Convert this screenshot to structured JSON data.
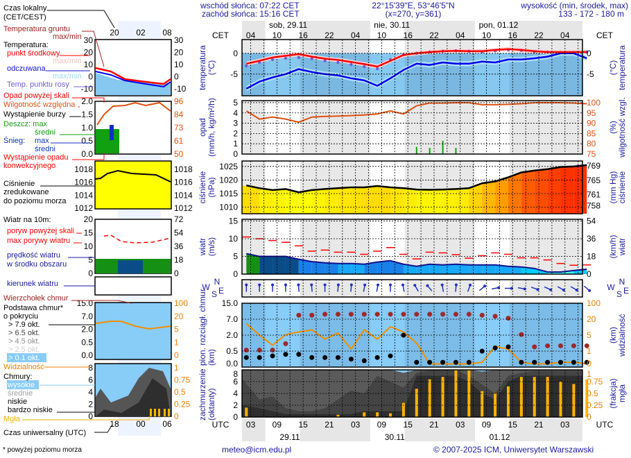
{
  "header": {
    "sunrise": "wschód słońca: 07:22 CET",
    "sunset": "zachód słońca: 15:16 CET",
    "coords": "22°15'39\"E, 53°46'5\"N",
    "grid": "(x=270,  y=361)",
    "elevation_label": "wysokość (min, środek, max)",
    "elevation": "133 - 172 - 180 m"
  },
  "time_axis": {
    "top_label": "CET",
    "bottom_label": "UTC",
    "days_top": [
      "sob, 29.11",
      "nie, 30.11",
      "pon, 01.12"
    ],
    "cet_ticks": [
      "04",
      "10",
      "16",
      "22",
      "04",
      "10",
      "16",
      "22",
      "04",
      "10",
      "16",
      "22",
      "04"
    ],
    "utc_ticks": [
      "03",
      "09",
      "15",
      "21",
      "03",
      "09",
      "15",
      "21",
      "03",
      "09",
      "15",
      "21",
      "03"
    ],
    "days_bottom": [
      "29.11",
      "30.11",
      "01.12"
    ]
  },
  "axes": {
    "temp": {
      "left_title": [
        "temperatura",
        "(°C)"
      ],
      "right_title": [
        "(°C)",
        "temperatura"
      ],
      "left_ticks": [
        "0",
        "-5"
      ],
      "right_ticks": [
        "0",
        "-5"
      ]
    },
    "precip": {
      "left_title": [
        "opad",
        "(mm/h, kg/m²/h)"
      ],
      "right_title": [
        "(%)",
        "wilgotność wzgl."
      ],
      "left_ticks": [
        "0",
        "1",
        "2",
        "3",
        "4",
        "5"
      ],
      "right_ticks": [
        "75",
        "80",
        "85",
        "90",
        "95",
        "100"
      ]
    },
    "pressure": {
      "left_title": [
        "ciśnienie",
        "(hPa)"
      ],
      "right_title": [
        "(mm Hg)",
        "ciśnienie"
      ],
      "left_ticks": [
        "1010",
        "1015",
        "1020",
        "1025"
      ],
      "right_ticks": [
        "758",
        "761",
        "765",
        "769"
      ]
    },
    "wind": {
      "left_title": [
        "wiatr",
        "(m/s)"
      ],
      "right_title": [
        "(km/h)",
        "wiatr"
      ],
      "left_ticks": [
        "0",
        "5",
        "10",
        "15"
      ],
      "right_ticks": [
        "0",
        "18",
        "36",
        "54"
      ]
    },
    "direction": {
      "compass": [
        "N",
        "W",
        "E",
        "S"
      ]
    },
    "clouds": {
      "left_title": [
        "pion. rozciągł. chmur",
        "(km)"
      ],
      "right_title": [
        "(km)",
        "widzialność"
      ],
      "left_ticks": [
        "0.0",
        "0.5",
        "2.0",
        "7.0",
        "15.0"
      ],
      "right_ticks": [
        "0",
        "1",
        "5",
        "20",
        "100"
      ]
    },
    "cover": {
      "left_title": [
        "zachmurzenie",
        "(oktanty)"
      ],
      "right_title": [
        "(frakcja)",
        "mgła"
      ],
      "left_ticks": [
        "0",
        "2",
        "4",
        "6",
        "8"
      ],
      "right_ticks": [
        "0",
        "0.25",
        "0.5",
        "0.75",
        "1"
      ]
    }
  },
  "legend": {
    "local_time": [
      "Czas lokalny",
      "(CET/CEST)"
    ],
    "local_ticks": [
      "20",
      "02",
      "08"
    ],
    "ground_temp": [
      "Temperatura gruntu",
      "max/min"
    ],
    "temperature": "Temperatura:",
    "mid_point": "punkt środkowy",
    "temp_maxmin": "max/min",
    "feels_like": "odczuwana",
    "feels_maxmin": "max/min",
    "dew_point": "Temp. punktu rosy",
    "temp_ticks_left": [
      "30",
      "20",
      "10",
      "0",
      "-10"
    ],
    "temp_ticks_right": [
      "30",
      "20",
      "10",
      "0",
      "-10"
    ],
    "precip_over_scale": "Opad powyżej skali",
    "humidity": "Wilgotność względna",
    "storm": "Wystąpienie burzy",
    "rain": [
      "Deszcz: max",
      "średni"
    ],
    "snow": [
      "Śnieg:",
      "max",
      "średni"
    ],
    "convective": [
      "Wystąpienie opadu",
      "konwekcyjnego"
    ],
    "precip_ticks_left": [
      "2.0",
      "1.5",
      "1.0",
      "0.5",
      "0.0"
    ],
    "precip_ticks_right": [
      "96",
      "84",
      "73",
      "61",
      "50"
    ],
    "pressure": [
      "Ciśnienie",
      "zredukowane",
      "do poziomu morza"
    ],
    "pressure_ticks_left": [
      "1018",
      "1016",
      "1014",
      "1012"
    ],
    "pressure_ticks_right": [
      "1018",
      "1016",
      "1014",
      "1012"
    ],
    "wind_title": "Wiatr na 10m:",
    "gust_over_scale": "poryw powyżej skali",
    "max_gusts": "max porywy wiatru",
    "wind_speed": [
      "prędkość wiatru",
      "w środku obszaru"
    ],
    "wind_ticks_left": [
      "20",
      "15",
      "10",
      "5",
      "0"
    ],
    "wind_ticks_right": [
      "72",
      "54",
      "36",
      "18",
      "0"
    ],
    "wind_dir": "kierunek wiatru",
    "cloud_top": "Wierzchołek chmur",
    "cloud_base": [
      "Podstawa chmur*",
      "o pokryciu"
    ],
    "okt": [
      "> 7.9 okt.",
      "> 6.5 okt.",
      "> 4.5 okt.",
      "> 2.5 okt.",
      "> 0.1 okt."
    ],
    "visibility": "Widzialność",
    "cloud_ticks_left": [
      "15.0",
      "7.0",
      "2.0",
      "0.5",
      "0.0"
    ],
    "cloud_ticks_right": [
      "100",
      "20",
      "5",
      "1",
      "0"
    ],
    "clouds": "Chmury:",
    "cloud_levels": [
      "wysokie",
      "średnie",
      "niskie",
      "bardzo niskie"
    ],
    "fog": "Mgła",
    "cover_ticks_left": [
      "8",
      "6",
      "4",
      "2",
      "0"
    ],
    "cover_ticks_right": [
      "1",
      "0.75",
      "0.5",
      "0.25",
      "0"
    ],
    "utc_ticks": [
      "18",
      "00",
      "06"
    ],
    "utc": "Czas uniwersalny (UTC)",
    "footnote": "* powyżej poziomu morza"
  },
  "footer": {
    "email": "meteo@icm.edu.pl",
    "copyright": "© 2007-2025 ICM, Uniwersytet Warszawski"
  },
  "colors": {
    "temperature": "#ff0000",
    "feels_like": "#0000ee",
    "dew_point": "#7060d0",
    "humidity": "#e05010",
    "rain": "#10a010",
    "pressure_low": "#ffff00",
    "pressure_high": "#ff3000",
    "gust": "#ff0000",
    "wind_line": "#101090",
    "cloud_top": "#a02828",
    "visibility": "#f09000",
    "fog": "#ffb400",
    "title_text": "#1a1aa0"
  },
  "chart_data": {
    "type": "line",
    "x": [
      "29.11 01:00",
      "29.11 04:00",
      "29.11 07:00",
      "29.11 10:00",
      "29.11 13:00",
      "29.11 16:00",
      "29.11 19:00",
      "29.11 22:00",
      "30.11 01:00",
      "30.11 04:00",
      "30.11 07:00",
      "30.11 10:00",
      "30.11 13:00",
      "30.11 16:00",
      "30.11 19:00",
      "30.11 22:00",
      "01.12 01:00",
      "01.12 04:00",
      "01.12 07:00",
      "01.12 10:00",
      "01.12 13:00",
      "01.12 16:00",
      "01.12 19:00",
      "01.12 22:00",
      "02.12 01:00",
      "02.12 04:00",
      "02.12 07:00"
    ],
    "x_unit": "UTC",
    "panels": {
      "temperature": {
        "ylim": [
          -10,
          3
        ],
        "series": [
          {
            "name": "punkt środkowy",
            "values": [
              -2.5,
              -1.8,
              -1,
              -0.6,
              -0.2,
              -0.8,
              -1.3,
              -1.6,
              -2.1,
              -2.6,
              -3.2,
              -1.8,
              -0.4,
              0,
              0.3,
              0.5,
              0.6,
              0.5,
              0.5,
              0.8,
              1,
              0.8,
              0.5,
              0.3,
              0.3,
              0.3,
              0.3
            ]
          },
          {
            "name": "odczuwana",
            "values": [
              -8.5,
              -6.8,
              -5.8,
              -5,
              -3.8,
              -4.5,
              -5,
              -5.3,
              -6,
              -6.5,
              -7.8,
              -6,
              -4,
              -2.5,
              -2.8,
              -2.2,
              -2.5,
              -2.5,
              -2,
              -2.2,
              -1.5,
              -1.5,
              -1.2,
              -0.8,
              0,
              0,
              -1.2
            ]
          },
          {
            "name": "Temp. punktu rosy",
            "values": [
              -3,
              -2.2,
              -1.5,
              -1.2,
              -1,
              -1.3,
              -1.8,
              -2.2,
              -2.7,
              -3.2,
              -3.7,
              -1.5,
              -0.3,
              0,
              0.3,
              0.5,
              0.6,
              0.5,
              0.4,
              0.6,
              0.8,
              0.7,
              0.4,
              0.3,
              0.2,
              0.2,
              0.3
            ]
          }
        ]
      },
      "precipitation": {
        "ylim": [
          0,
          5
        ],
        "y2lim": [
          75,
          100
        ],
        "series": [
          {
            "name": "Deszcz",
            "type": "bar",
            "values": [
              0,
              0,
              0,
              0,
              0,
              0,
              0,
              0,
              0,
              0,
              0,
              0,
              0,
              0.7,
              0.6,
              1.3,
              0.6,
              0,
              0,
              0,
              0,
              0,
              0,
              0,
              0,
              0,
              0
            ]
          },
          {
            "name": "Wilgotność względna",
            "axis": "right",
            "values": [
              96,
              92,
              93,
              92,
              90.5,
              93,
              93.3,
              93.5,
              93.7,
              94,
              94.5,
              96,
              94.5,
              98.5,
              99.8,
              99.8,
              100,
              100,
              99,
              99,
              99.2,
              99.5,
              100,
              100,
              100,
              99.8,
              99.5
            ]
          }
        ]
      },
      "pressure": {
        "ylim": [
          1008,
          1027
        ],
        "series": [
          {
            "name": "Ciśnienie",
            "type": "area",
            "values": [
              1018,
              1017,
              1016.3,
              1016.7,
              1015.5,
              1016.3,
              1016.7,
              1017,
              1017.3,
              1017.3,
              1017.8,
              1017.3,
              1017,
              1016.5,
              1016.4,
              1016.5,
              1016.7,
              1017,
              1018.8,
              1019.5,
              1021,
              1022.8,
              1023.5,
              1024,
              1024.8,
              1025,
              1025.5
            ]
          }
        ]
      },
      "wind": {
        "ylim": [
          0,
          15
        ],
        "series": [
          {
            "name": "prędkość wiatru",
            "type": "area",
            "values": [
              5.8,
              5,
              5,
              5,
              4.2,
              3.5,
              3.2,
              3,
              3,
              2.8,
              3.4,
              3.8,
              2.8,
              2.2,
              2.8,
              2.6,
              2.8,
              2.6,
              2.6,
              2.6,
              2.2,
              2,
              1.6,
              0.6,
              0.6,
              1,
              1.4
            ]
          },
          {
            "name": "max porywy wiatru",
            "type": "step",
            "values": [
              10.5,
              10,
              9.5,
              9,
              8,
              6.5,
              6.8,
              6.2,
              6.2,
              5.6,
              6.5,
              7.5,
              5.6,
              4.3,
              6.2,
              6,
              5.5,
              4.5,
              5.2,
              6,
              5.6,
              4.6,
              4.6,
              4,
              3,
              2.5,
              2.6
            ]
          }
        ]
      },
      "wind_direction_deg": [
        180,
        180,
        180,
        180,
        175,
        175,
        180,
        185,
        185,
        190,
        190,
        180,
        170,
        150,
        140,
        170,
        185,
        200,
        230,
        260,
        270,
        280,
        290,
        295,
        300,
        300,
        310
      ],
      "clouds": {
        "y_ticks_km": [
          0,
          0.5,
          2,
          7,
          15
        ],
        "y2_ticks_km": [
          0,
          1,
          5,
          20,
          100
        ],
        "series": [
          {
            "name": "Wierzchołek chmur",
            "type": "scatter",
            "values": [
              0.6,
              0.6,
              0.6,
              1.2,
              9,
              9,
              9.5,
              9.5,
              9.5,
              9.5,
              9.5,
              9.5,
              9.5,
              9.5,
              9.5,
              9.5,
              9.5,
              9.5,
              9,
              8.5,
              7.5,
              2.2,
              0.9,
              1,
              1,
              1,
              1
            ]
          },
          {
            "name": "> 7.9 okt.",
            "type": "scatter",
            "values": [
              0.3,
              0.3,
              0.35,
              0.4,
              0.4,
              0.3,
              0.3,
              0.3,
              0.25,
              0.2,
              0.3,
              0.35,
              2,
              0.15,
              0.15,
              0.15,
              0.15,
              0.15,
              0.5,
              0.8,
              0.9,
              0.15,
              0.15,
              0.15,
              0.15,
              0.15,
              0.15
            ]
          },
          {
            "name": "Widzialność",
            "axis": "right",
            "values": [
              16,
              5,
              2.5,
              5.5,
              8,
              10,
              4,
              7,
              1.5,
              10,
              4,
              13,
              8,
              3,
              0.2,
              0.2,
              0.2,
              0.2,
              0.3,
              2.2,
              1.5,
              0.3,
              0.2,
              0.2,
              0.3,
              0.3,
              0.2
            ]
          }
        ]
      },
      "cloud_cover": {
        "ylim": [
          0,
          8
        ],
        "y2lim": [
          0,
          1
        ],
        "series": [
          {
            "name": "średnie",
            "type": "area",
            "values": [
              8,
              8,
              8,
              8,
              8,
              8,
              8,
              8,
              8,
              8,
              8,
              8,
              7.5,
              8,
              8,
              8,
              8,
              8,
              7.7,
              8,
              8,
              8,
              8,
              8,
              8,
              8,
              8
            ]
          },
          {
            "name": "niskie",
            "type": "area",
            "values": [
              6.5,
              3,
              3.5,
              1.5,
              1,
              1,
              1.5,
              3,
              4.5,
              4,
              7,
              6,
              5,
              7.5,
              8,
              8,
              8,
              7,
              5.5,
              4,
              7,
              7.5,
              7.8,
              7.8,
              7.8,
              7.8,
              7.8
            ]
          },
          {
            "name": "bardzo niskie",
            "type": "area",
            "values": [
              2,
              1.5,
              1,
              0.5,
              0.5,
              0.5,
              0.5,
              0.5,
              0.5,
              1,
              1,
              1,
              1,
              7,
              7,
              7,
              7,
              6,
              4,
              3,
              6,
              7,
              7,
              7,
              7,
              7,
              7
            ]
          },
          {
            "name": "Mgła",
            "type": "bar",
            "axis": "right",
            "values": [
              0.2,
              0,
              0,
              0,
              0,
              0,
              0,
              0.05,
              0,
              0.1,
              0.1,
              0.08,
              0.3,
              0.6,
              0.8,
              0.85,
              1,
              1,
              0.55,
              0.5,
              0.65,
              0.85,
              0.85,
              0.85,
              0.75,
              0.7,
              0.8
            ]
          }
        ]
      }
    }
  }
}
